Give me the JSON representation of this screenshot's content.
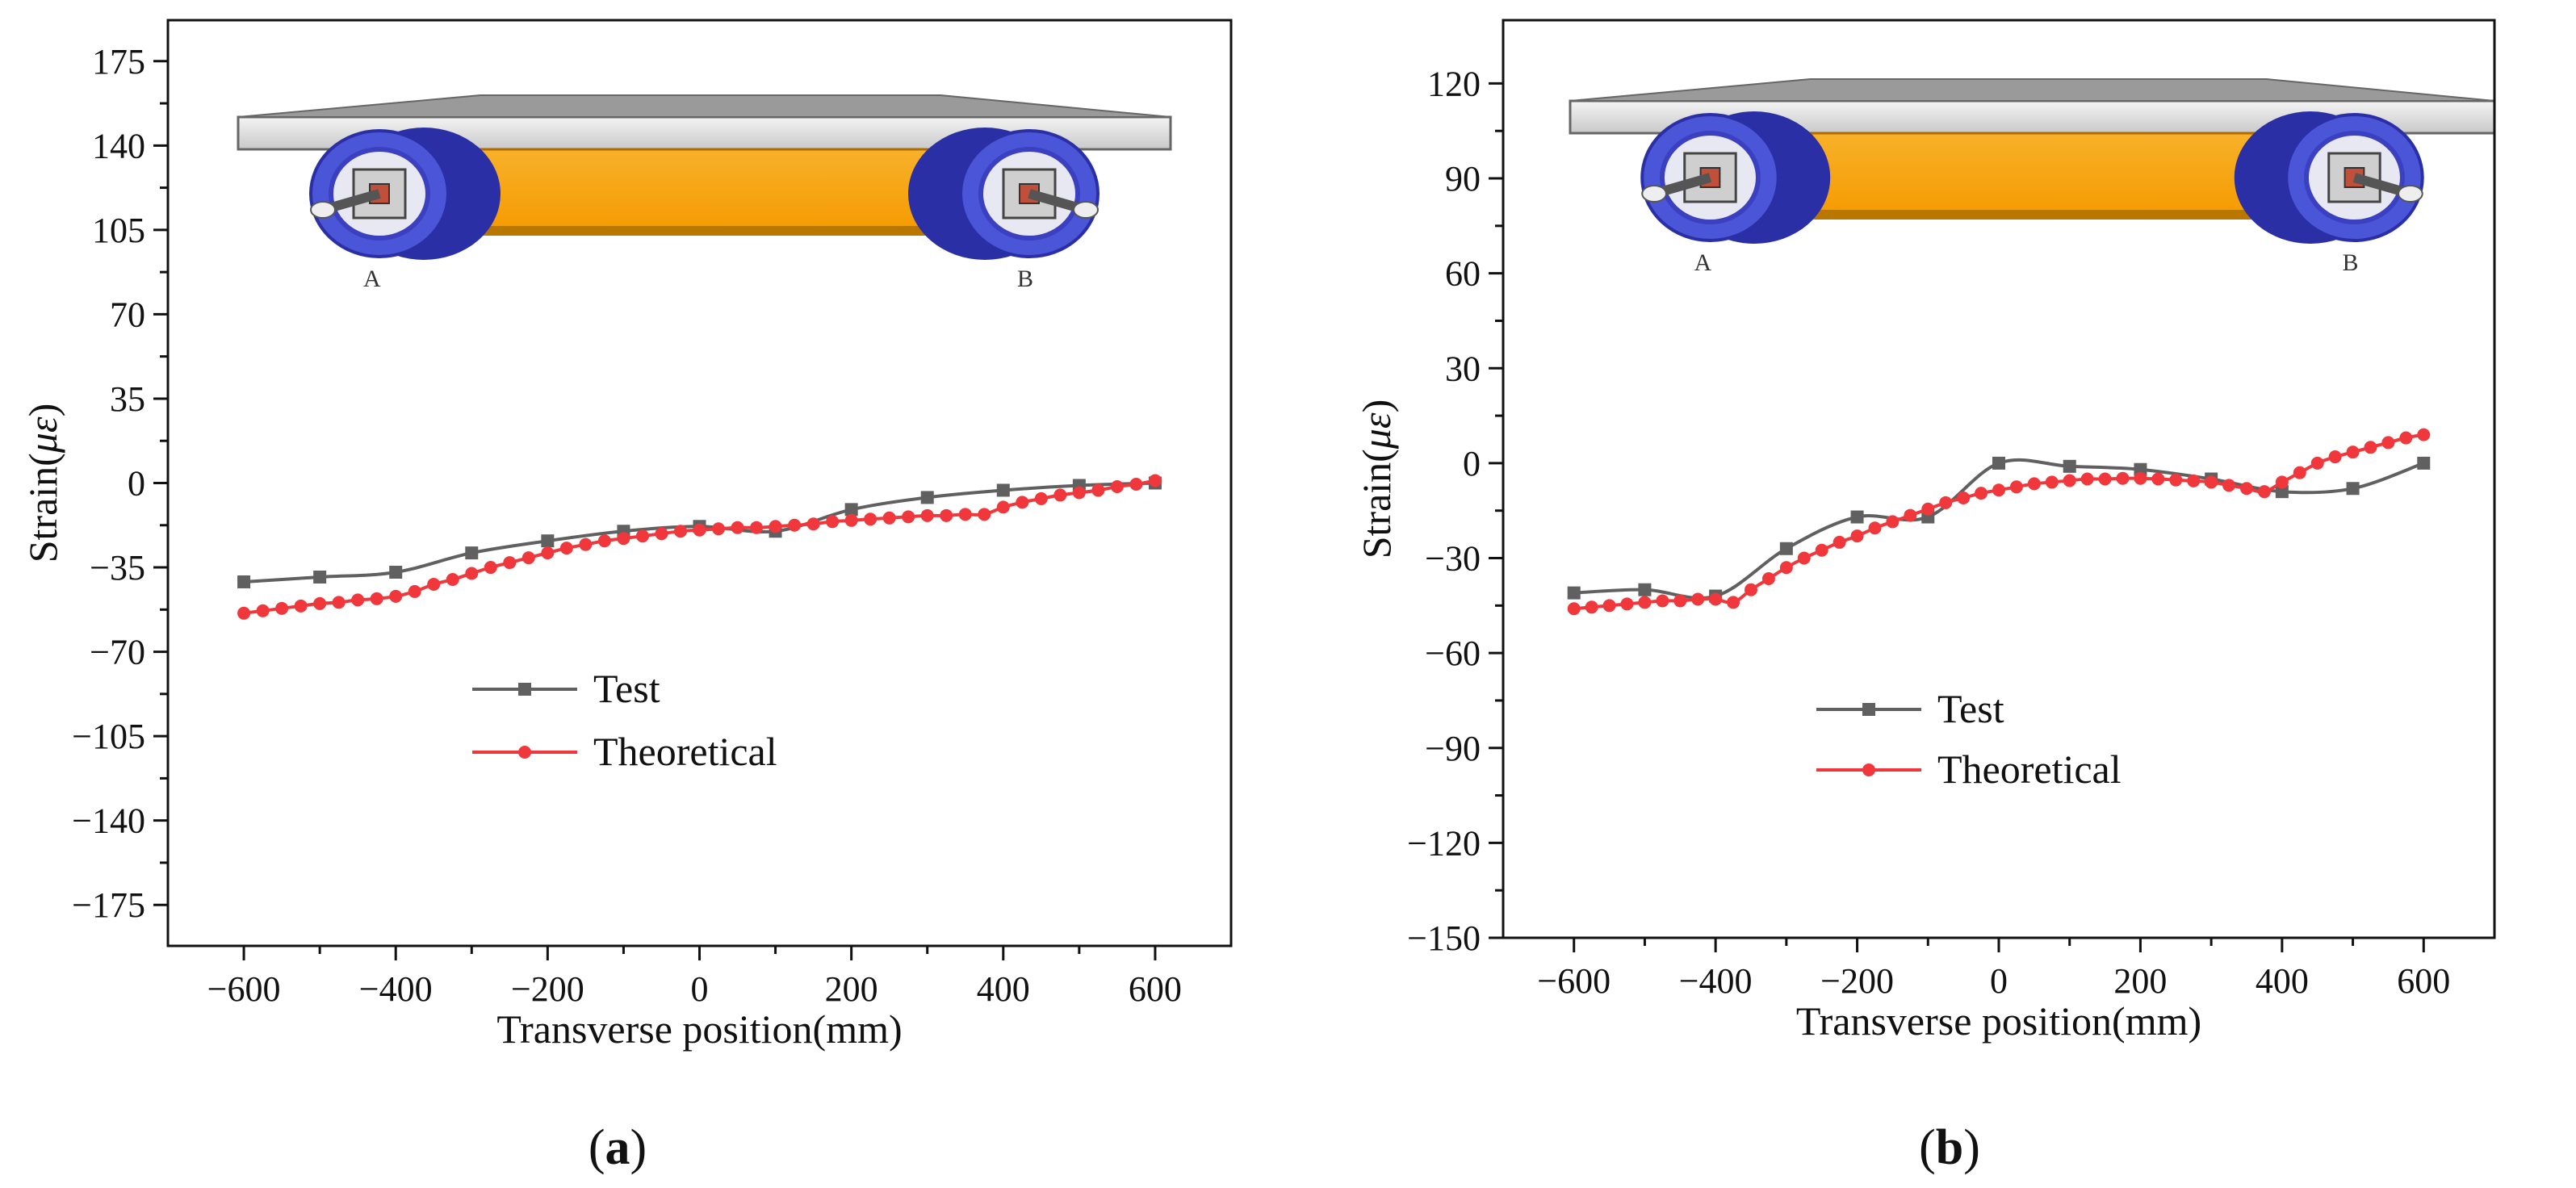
{
  "chart_data": [
    {
      "panel_label": "a",
      "type": "line",
      "xlabel": "Transverse position(mm)",
      "ylabel_prefix": "Strain(",
      "ylabel_symbol": "με",
      "ylabel_suffix": ")",
      "xlim": [
        -700,
        700
      ],
      "ylim": [
        -192,
        192
      ],
      "xticks": [
        -600,
        -400,
        -200,
        0,
        200,
        400,
        600
      ],
      "xtick_labels": [
        "−600",
        "−400",
        "−200",
        "0",
        "200",
        "400",
        "600"
      ],
      "yticks": [
        -175,
        -140,
        -105,
        -70,
        -35,
        0,
        35,
        70,
        105,
        140,
        175
      ],
      "ytick_labels": [
        "−175",
        "−140",
        "−105",
        "−70",
        "−35",
        "0",
        "35",
        "70",
        "105",
        "140",
        "175"
      ],
      "legend_labels": [
        "Test",
        "Theoretical"
      ],
      "diagram_labels": [
        "A",
        "B"
      ],
      "series": [
        {
          "name": "Test",
          "color": "#606060",
          "marker": "square",
          "x": [
            -600,
            -500,
            -400,
            -300,
            -200,
            -100,
            0,
            100,
            200,
            300,
            400,
            500,
            600
          ],
          "y": [
            -41,
            -39,
            -37,
            -29,
            -24,
            -20,
            -18,
            -20,
            -11,
            -6,
            -3,
            -1,
            0
          ]
        },
        {
          "name": "Theoretical",
          "color": "#f0383c",
          "marker": "circle",
          "x": [
            -600,
            -575,
            -550,
            -525,
            -500,
            -475,
            -450,
            -425,
            -400,
            -375,
            -350,
            -325,
            -300,
            -275,
            -250,
            -225,
            -200,
            -175,
            -150,
            -125,
            -100,
            -75,
            -50,
            -25,
            0,
            25,
            50,
            75,
            100,
            125,
            150,
            175,
            200,
            225,
            250,
            275,
            300,
            325,
            350,
            375,
            400,
            425,
            450,
            475,
            500,
            525,
            550,
            575,
            600
          ],
          "y": [
            -54,
            -53,
            -52,
            -51,
            -50,
            -49.5,
            -48.5,
            -48,
            -47,
            -45,
            -42,
            -40,
            -37.5,
            -35,
            -33,
            -31,
            -29,
            -27,
            -25.5,
            -24,
            -23,
            -22,
            -21,
            -20,
            -19.5,
            -19,
            -18.5,
            -18.5,
            -18,
            -17.5,
            -17,
            -16,
            -15.5,
            -15,
            -14.5,
            -14,
            -13.5,
            -13.5,
            -13,
            -13,
            -10,
            -8,
            -6.5,
            -5,
            -4,
            -3,
            -1.5,
            -0.5,
            1
          ]
        }
      ]
    },
    {
      "panel_label": "b",
      "type": "line",
      "xlabel": "Transverse position(mm)",
      "ylabel_prefix": "Strain(",
      "ylabel_symbol": "με",
      "ylabel_suffix": ")",
      "xlim": [
        -700,
        700
      ],
      "ylim": [
        -150,
        140
      ],
      "xticks": [
        -600,
        -400,
        -200,
        0,
        200,
        400,
        600
      ],
      "xtick_labels": [
        "−600",
        "−400",
        "−200",
        "0",
        "200",
        "400",
        "600"
      ],
      "yticks": [
        -150,
        -120,
        -90,
        -60,
        -30,
        0,
        30,
        60,
        90,
        120
      ],
      "ytick_labels": [
        "−150",
        "−120",
        "−90",
        "−60",
        "−30",
        "0",
        "30",
        "60",
        "90",
        "120"
      ],
      "legend_labels": [
        "Test",
        "Theoretical"
      ],
      "diagram_labels": [
        "A",
        "B"
      ],
      "series": [
        {
          "name": "Test",
          "color": "#606060",
          "marker": "square",
          "x": [
            -600,
            -500,
            -400,
            -300,
            -200,
            -100,
            0,
            100,
            200,
            300,
            400,
            500,
            600
          ],
          "y": [
            -41,
            -40,
            -42,
            -27,
            -17,
            -17,
            0,
            -1,
            -2,
            -5,
            -9,
            -8,
            0
          ]
        },
        {
          "name": "Theoretical",
          "color": "#f0383c",
          "marker": "circle",
          "x": [
            -600,
            -575,
            -550,
            -525,
            -500,
            -475,
            -450,
            -425,
            -400,
            -375,
            -350,
            -325,
            -300,
            -275,
            -250,
            -225,
            -200,
            -175,
            -150,
            -125,
            -100,
            -75,
            -50,
            -25,
            0,
            25,
            50,
            75,
            100,
            125,
            150,
            175,
            200,
            225,
            250,
            275,
            300,
            325,
            350,
            375,
            400,
            425,
            450,
            475,
            500,
            525,
            550,
            575,
            600
          ],
          "y": [
            -46,
            -45.5,
            -45,
            -44.5,
            -44,
            -43.5,
            -43.5,
            -43,
            -43,
            -44,
            -40,
            -36.5,
            -33,
            -30,
            -27.5,
            -25,
            -23,
            -20.5,
            -18.5,
            -16.5,
            -14.5,
            -12.5,
            -11,
            -9.5,
            -8.5,
            -7.5,
            -6.5,
            -6,
            -5.5,
            -5,
            -5,
            -4.8,
            -4.8,
            -5,
            -5.3,
            -5.6,
            -6,
            -7,
            -8,
            -9,
            -6,
            -3,
            0,
            2,
            3.5,
            5,
            6.5,
            8,
            9
          ]
        }
      ]
    }
  ]
}
